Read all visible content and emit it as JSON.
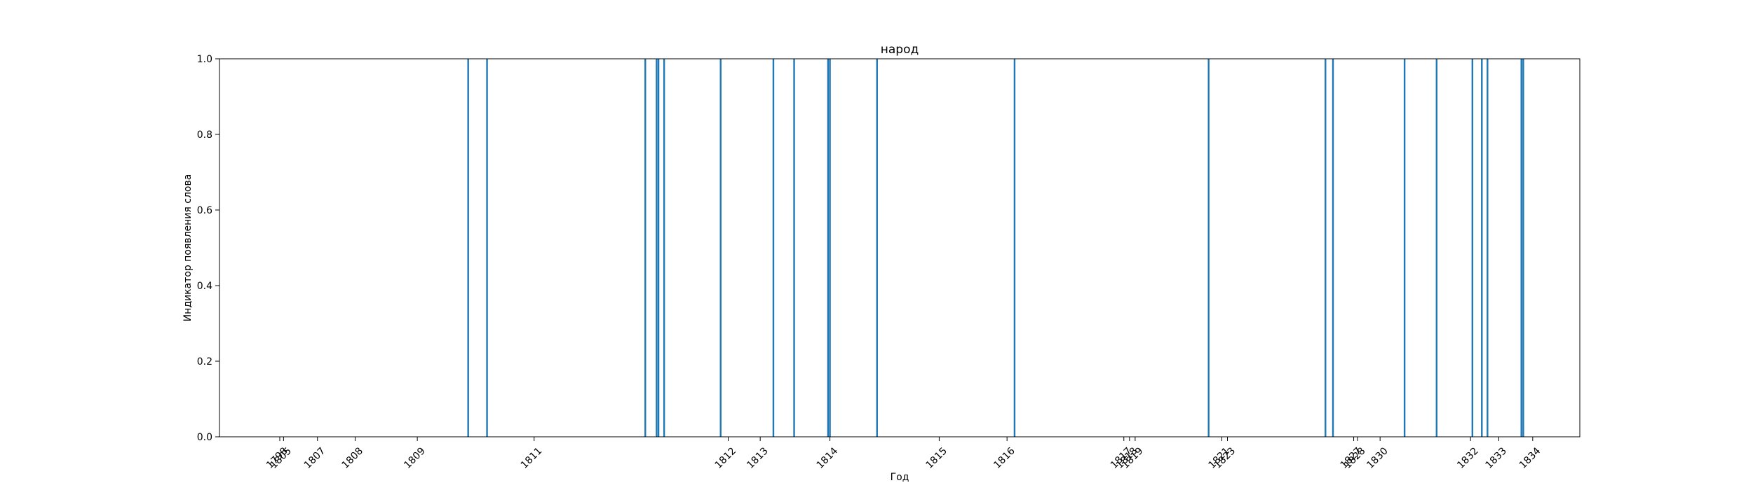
{
  "chart_data": {
    "type": "bar",
    "title": "народ",
    "xlabel": "Год",
    "ylabel": "Индикатор появления слова",
    "ylim": [
      0,
      1.0
    ],
    "y_ticks": [
      "0.0",
      "0.2",
      "0.4",
      "0.6",
      "0.8",
      "1.0"
    ],
    "bar_color": "#1f77b4",
    "grid": false,
    "x_ticks": [
      {
        "x": 1.0,
        "label": "1798"
      },
      {
        "x": 1.1,
        "label": "1805"
      },
      {
        "x": 2.0,
        "label": "1807"
      },
      {
        "x": 3.0,
        "label": "1808"
      },
      {
        "x": 4.65,
        "label": "1809"
      },
      {
        "x": 7.75,
        "label": "1811"
      },
      {
        "x": 12.9,
        "label": "1812"
      },
      {
        "x": 13.75,
        "label": "1813"
      },
      {
        "x": 15.6,
        "label": "1814"
      },
      {
        "x": 18.5,
        "label": "1815"
      },
      {
        "x": 20.3,
        "label": "1816"
      },
      {
        "x": 23.4,
        "label": "1817"
      },
      {
        "x": 23.55,
        "label": "1818"
      },
      {
        "x": 23.7,
        "label": "1819"
      },
      {
        "x": 26.0,
        "label": "1821"
      },
      {
        "x": 26.15,
        "label": "1823"
      },
      {
        "x": 29.5,
        "label": "1827"
      },
      {
        "x": 29.6,
        "label": "1828"
      },
      {
        "x": 30.2,
        "label": "1830"
      },
      {
        "x": 32.6,
        "label": "1832"
      },
      {
        "x": 33.35,
        "label": "1833"
      },
      {
        "x": 34.25,
        "label": "1834"
      }
    ],
    "x": [
      6.0,
      6.5,
      10.7,
      11.0,
      11.05,
      11.2,
      12.7,
      14.1,
      14.65,
      15.55,
      15.6,
      16.85,
      20.5,
      25.65,
      28.75,
      28.95,
      30.85,
      31.7,
      32.65,
      32.9,
      33.05,
      33.95,
      34.0
    ],
    "values": [
      1,
      1,
      1,
      1,
      1,
      1,
      1,
      1,
      1,
      1,
      1,
      1,
      1,
      1,
      1,
      1,
      1,
      1,
      1,
      1,
      1,
      1,
      1
    ],
    "xlim": [
      -0.6,
      35.5
    ]
  }
}
